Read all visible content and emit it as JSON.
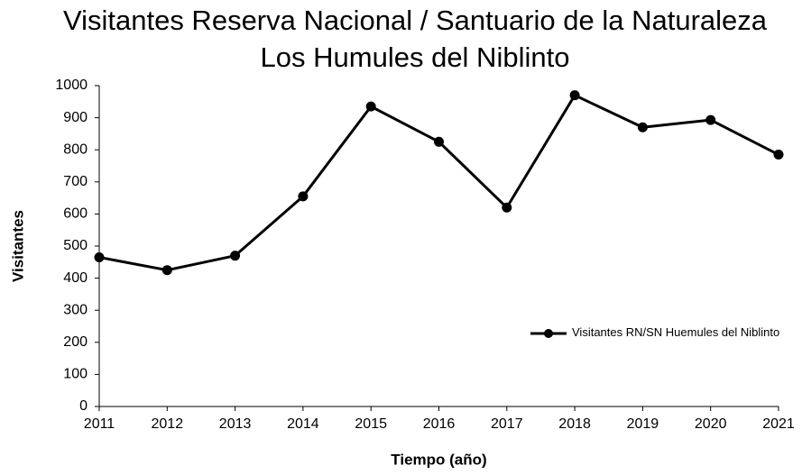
{
  "chart_data": {
    "type": "line",
    "title": "Visitantes Reserva Nacional / Santuario de la Naturaleza  Los Humules  del Niblinto",
    "x_label": "Tiempo (año)",
    "y_label": "Visitantes",
    "x": [
      2011,
      2012,
      2013,
      2014,
      2015,
      2016,
      2017,
      2018,
      2019,
      2020,
      2021
    ],
    "xlim": [
      2011,
      2021
    ],
    "xticks": [
      2011,
      2012,
      2013,
      2014,
      2015,
      2016,
      2017,
      2018,
      2019,
      2020,
      2021
    ],
    "ylim": [
      0,
      1000
    ],
    "yticks": [
      0,
      100,
      200,
      300,
      400,
      500,
      600,
      700,
      800,
      900,
      1000
    ],
    "grid": false,
    "legend": "right",
    "series": [
      {
        "name": "Visitantes RN/SN Huemules del Niblinto",
        "color": "#000000",
        "values": [
          465,
          425,
          470,
          655,
          935,
          825,
          620,
          970,
          870,
          893,
          785
        ]
      }
    ]
  }
}
